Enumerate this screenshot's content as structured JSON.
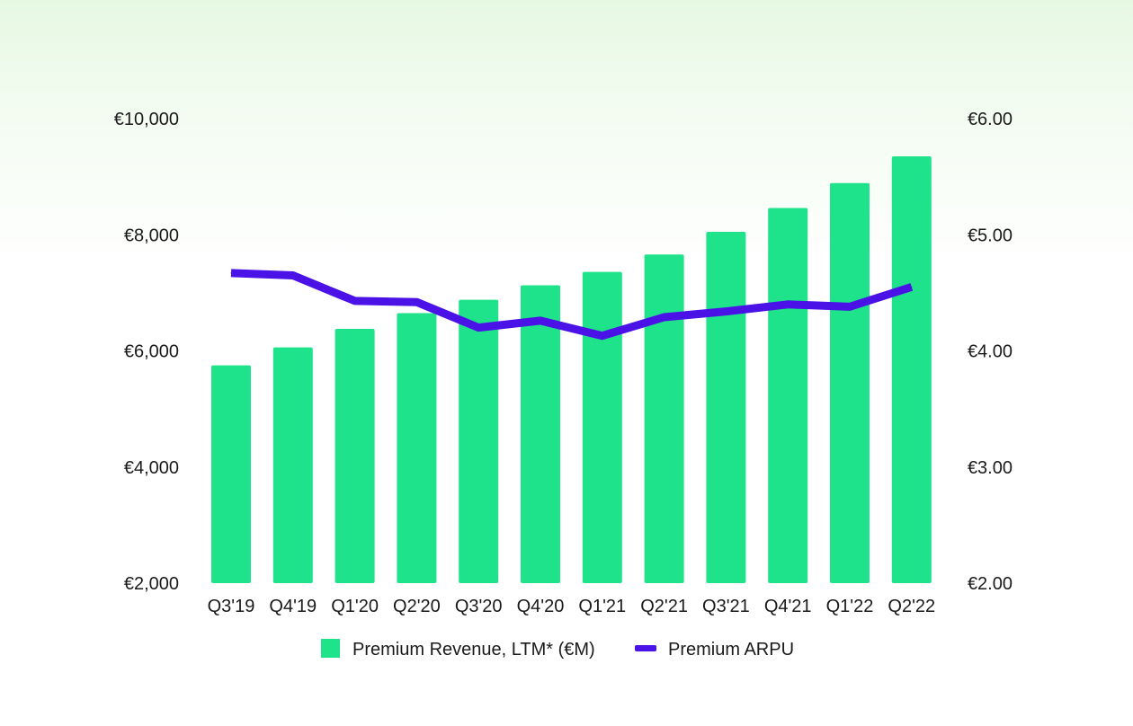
{
  "chart_data": {
    "type": "bar",
    "categories": [
      "Q3'19",
      "Q4'19",
      "Q1'20",
      "Q2'20",
      "Q3'20",
      "Q4'20",
      "Q1'21",
      "Q2'21",
      "Q3'21",
      "Q4'21",
      "Q1'22",
      "Q2'22"
    ],
    "series": [
      {
        "name": "Premium Revenue, LTM* (€M)",
        "type": "bar",
        "axis": "left",
        "color": "#1ee38a",
        "values": [
          5750,
          6060,
          6380,
          6650,
          6880,
          7130,
          7360,
          7660,
          8050,
          8460,
          8890,
          9350
        ]
      },
      {
        "name": "Premium ARPU",
        "type": "line",
        "axis": "right",
        "color": "#4b12e8",
        "values": [
          4.67,
          4.65,
          4.43,
          4.42,
          4.2,
          4.26,
          4.13,
          4.29,
          4.34,
          4.4,
          4.38,
          4.55
        ]
      }
    ],
    "y_left": {
      "lim": [
        2000,
        10000
      ],
      "ticks": [
        2000,
        4000,
        6000,
        8000,
        10000
      ],
      "tick_labels": [
        "€2,000",
        "€4,000",
        "€6,000",
        "€8,000",
        "€10,000"
      ]
    },
    "y_right": {
      "lim": [
        2.0,
        6.0
      ],
      "ticks": [
        2.0,
        3.0,
        4.0,
        5.0,
        6.0
      ],
      "tick_labels": [
        "€2.00",
        "€3.00",
        "€4.00",
        "€5.00",
        "€6.00"
      ]
    },
    "grid": false,
    "legend": {
      "position": "bottom",
      "entries": [
        "Premium Revenue, LTM* (€M)",
        "Premium ARPU"
      ]
    }
  }
}
